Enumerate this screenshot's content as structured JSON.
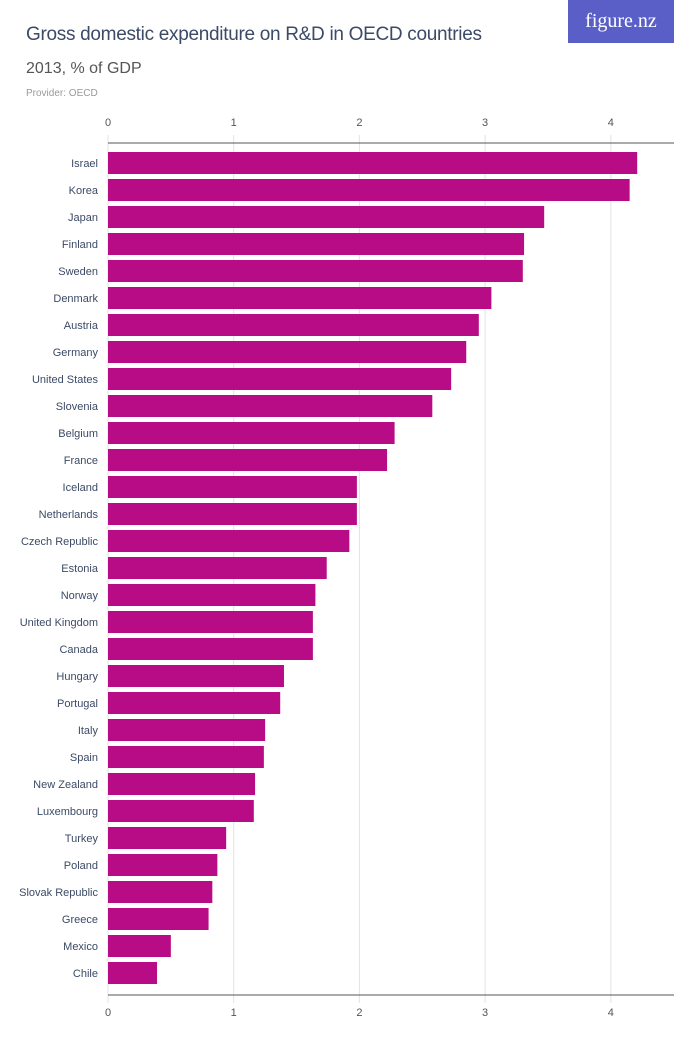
{
  "header": {
    "title": "Gross domestic expenditure on R&D in OECD countries",
    "subtitle": "2013, % of GDP",
    "provider": "Provider: OECD",
    "logo": "figure.nz"
  },
  "colors": {
    "bar": "#b80c86",
    "logo_bg": "#5a5fc8",
    "text": "#3c4a66"
  },
  "chart_data": {
    "type": "bar",
    "orientation": "horizontal",
    "xlim": [
      0,
      4.5
    ],
    "ticks": [
      0,
      1,
      2,
      3,
      4
    ],
    "grid": true,
    "categories": [
      "Israel",
      "Korea",
      "Japan",
      "Finland",
      "Sweden",
      "Denmark",
      "Austria",
      "Germany",
      "United States",
      "Slovenia",
      "Belgium",
      "France",
      "Iceland",
      "Netherlands",
      "Czech Republic",
      "Estonia",
      "Norway",
      "United Kingdom",
      "Canada",
      "Hungary",
      "Portugal",
      "Italy",
      "Spain",
      "New Zealand",
      "Luxembourg",
      "Turkey",
      "Poland",
      "Slovak Republic",
      "Greece",
      "Mexico",
      "Chile"
    ],
    "values": [
      4.21,
      4.15,
      3.47,
      3.31,
      3.3,
      3.05,
      2.95,
      2.85,
      2.73,
      2.58,
      2.28,
      2.22,
      1.98,
      1.98,
      1.92,
      1.74,
      1.65,
      1.63,
      1.63,
      1.4,
      1.37,
      1.25,
      1.24,
      1.17,
      1.16,
      0.94,
      0.87,
      0.83,
      0.8,
      0.5,
      0.39
    ]
  }
}
